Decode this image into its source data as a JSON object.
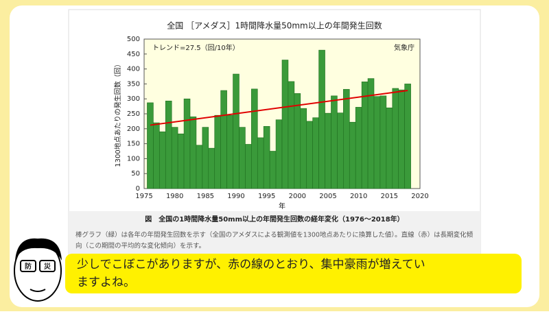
{
  "chart_data": {
    "type": "bar",
    "title": "全国 ［アメダス］1時間降水量50mm以上の年間発生回数",
    "x_label": "年",
    "y_label": "1300地点あたりの発生回数（回）",
    "annotations": [
      "トレンド=27.5（回/10年）",
      "気象庁"
    ],
    "x": [
      1976,
      1977,
      1978,
      1979,
      1980,
      1981,
      1982,
      1983,
      1984,
      1985,
      1986,
      1987,
      1988,
      1989,
      1990,
      1991,
      1992,
      1993,
      1994,
      1995,
      1996,
      1997,
      1998,
      1999,
      2000,
      2001,
      2002,
      2003,
      2004,
      2005,
      2006,
      2007,
      2008,
      2009,
      2010,
      2011,
      2012,
      2013,
      2014,
      2015,
      2016,
      2017,
      2018
    ],
    "values": [
      287,
      220,
      190,
      293,
      205,
      183,
      300,
      240,
      145,
      205,
      135,
      245,
      328,
      245,
      383,
      205,
      148,
      333,
      170,
      208,
      125,
      230,
      430,
      358,
      318,
      268,
      225,
      237,
      463,
      252,
      310,
      253,
      332,
      222,
      272,
      357,
      368,
      308,
      310,
      270,
      335,
      330,
      350
    ],
    "color": "#3a9a3a",
    "trend": {
      "x": [
        1976,
        2018
      ],
      "values": [
        212,
        328
      ],
      "color": "#e00000"
    },
    "xlim": [
      1975,
      2020
    ],
    "xticks": [
      1975,
      1980,
      1985,
      1990,
      1995,
      2000,
      2005,
      2010,
      2015,
      2020
    ],
    "ylim": [
      0,
      500
    ],
    "yticks": [
      0,
      50,
      100,
      150,
      200,
      250,
      300,
      350,
      400,
      450,
      500
    ]
  },
  "caption": "図　全国の1時間降水量50mm以上の年間発生回数の経年変化（1976～2018年）",
  "description": [
    "棒グラフ（緑）は各年の年間発生回数を示す（全国のアメダスによる観測値を1300地点あたりに換算した値）。直線（赤）は長期変化傾",
    "向（この期間の平均的な変化傾向）を示す。"
  ],
  "face_label": [
    "防",
    "災"
  ],
  "speech": [
    "少しでこぼこがありますが、赤の線のとおり、集中豪雨が増えてい",
    "ますよね。"
  ]
}
